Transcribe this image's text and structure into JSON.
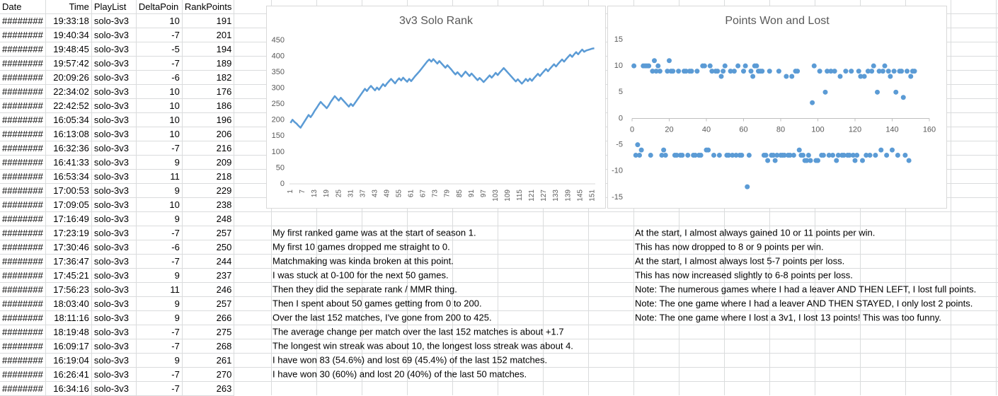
{
  "table": {
    "header": [
      "Date",
      "Time",
      "PlayList",
      "DeltaPoin",
      "RankPoints"
    ],
    "rows": [
      [
        "########",
        "19:33:18",
        "solo-3v3",
        10,
        191
      ],
      [
        "########",
        "19:40:34",
        "solo-3v3",
        -7,
        201
      ],
      [
        "########",
        "19:48:45",
        "solo-3v3",
        -5,
        194
      ],
      [
        "########",
        "19:57:42",
        "solo-3v3",
        -7,
        189
      ],
      [
        "########",
        "20:09:26",
        "solo-3v3",
        -6,
        182
      ],
      [
        "########",
        "22:34:02",
        "solo-3v3",
        10,
        176
      ],
      [
        "########",
        "22:42:52",
        "solo-3v3",
        10,
        186
      ],
      [
        "########",
        "16:05:34",
        "solo-3v3",
        10,
        196
      ],
      [
        "########",
        "16:13:08",
        "solo-3v3",
        10,
        206
      ],
      [
        "########",
        "16:32:36",
        "solo-3v3",
        -7,
        216
      ],
      [
        "########",
        "16:41:33",
        "solo-3v3",
        9,
        209
      ],
      [
        "########",
        "16:53:34",
        "solo-3v3",
        11,
        218
      ],
      [
        "########",
        "17:00:53",
        "solo-3v3",
        9,
        229
      ],
      [
        "########",
        "17:09:05",
        "solo-3v3",
        10,
        238
      ],
      [
        "########",
        "17:16:49",
        "solo-3v3",
        9,
        248
      ],
      [
        "########",
        "17:23:19",
        "solo-3v3",
        -7,
        257
      ],
      [
        "########",
        "17:30:46",
        "solo-3v3",
        -6,
        250
      ],
      [
        "########",
        "17:36:47",
        "solo-3v3",
        -7,
        244
      ],
      [
        "########",
        "17:45:21",
        "solo-3v3",
        9,
        237
      ],
      [
        "########",
        "17:56:23",
        "solo-3v3",
        11,
        246
      ],
      [
        "########",
        "18:03:40",
        "solo-3v3",
        9,
        257
      ],
      [
        "########",
        "18:11:16",
        "solo-3v3",
        9,
        266
      ],
      [
        "########",
        "18:19:48",
        "solo-3v3",
        -7,
        275
      ],
      [
        "########",
        "16:09:17",
        "solo-3v3",
        -7,
        268
      ],
      [
        "########",
        "16:19:04",
        "solo-3v3",
        9,
        261
      ],
      [
        "########",
        "16:26:41",
        "solo-3v3",
        -7,
        270
      ],
      [
        "########",
        "16:34:16",
        "solo-3v3",
        -7,
        263
      ]
    ]
  },
  "notes": {
    "left": [
      "My first ranked game was at the start of season 1.",
      "My first 10 games dropped me straight to 0.",
      "Matchmaking was kinda broken at this point.",
      "I was stuck at 0-100 for the next 50 games.",
      "Then they did the separate rank / MMR thing.",
      "Then I spent about 50 games getting from 0 to 200.",
      "Over the last 152 matches, I've gone from 200 to 425.",
      "The average change per match over the last 152 matches is about +1.7",
      "The longest win streak was about 10, the longest loss streak was about 4.",
      "I have won 83 (54.6%) and lost 69 (45.4%) of the last 152 matches.",
      "I have won 30 (60%) and lost 20 (40%) of the last 50 matches."
    ],
    "right": [
      "At the start, I almost always gained 10 or 11 points per win.",
      "This has now dropped to 8 or 9 points per win.",
      "At the start, I almost always lost 5-7 points per loss.",
      "This has now increased slightly to 6-8 points per loss.",
      "Note: The numerous games where I had a leaver AND THEN LEFT, I lost full points.",
      "Note: The one game where I had a leaver AND THEN STAYED, I only lost 2 points.",
      "Note: The one game where I lost a 3v1, I lost 13 points! This was too funny."
    ]
  },
  "chart_data": [
    {
      "type": "line",
      "title": "3v3 Solo Rank",
      "color": "#5b9bd5",
      "grid": false,
      "categories": [
        1,
        null,
        null,
        null,
        null,
        null,
        7,
        null,
        null,
        null,
        null,
        null,
        13,
        null,
        null,
        null,
        null,
        null,
        19,
        null,
        null,
        null,
        null,
        null,
        25,
        null,
        null,
        null,
        null,
        null,
        31,
        null,
        null,
        null,
        null,
        null,
        37,
        null,
        null,
        null,
        null,
        null,
        43,
        null,
        null,
        null,
        null,
        null,
        49,
        null,
        null,
        null,
        null,
        null,
        55,
        null,
        null,
        null,
        null,
        null,
        61,
        null,
        null,
        null,
        null,
        null,
        67,
        null,
        null,
        null,
        null,
        null,
        73,
        null,
        null,
        null,
        null,
        null,
        79,
        null,
        null,
        null,
        null,
        null,
        85,
        null,
        null,
        null,
        null,
        null,
        91,
        null,
        null,
        null,
        null,
        null,
        97,
        null,
        null,
        null,
        null,
        null,
        103,
        null,
        null,
        null,
        null,
        null,
        109,
        null,
        null,
        null,
        null,
        null,
        115,
        null,
        null,
        null,
        null,
        null,
        121,
        null,
        null,
        null,
        null,
        null,
        127,
        null,
        null,
        null,
        null,
        null,
        133,
        null,
        null,
        null,
        null,
        null,
        139,
        null,
        null,
        null,
        null,
        null,
        145,
        null,
        null,
        null,
        null,
        null,
        151,
        null
      ],
      "values": [
        191,
        201,
        194,
        189,
        182,
        176,
        186,
        196,
        206,
        216,
        209,
        218,
        229,
        238,
        248,
        257,
        250,
        244,
        237,
        246,
        257,
        266,
        275,
        268,
        261,
        270,
        263,
        256,
        249,
        242,
        251,
        244,
        253,
        262,
        271,
        280,
        289,
        298,
        291,
        300,
        307,
        300,
        293,
        302,
        295,
        304,
        313,
        306,
        315,
        322,
        329,
        322,
        315,
        324,
        331,
        324,
        333,
        326,
        320,
        329,
        322,
        330,
        338,
        345,
        352,
        360,
        368,
        376,
        384,
        390,
        383,
        391,
        384,
        377,
        385,
        378,
        371,
        364,
        372,
        365,
        358,
        350,
        343,
        350,
        343,
        336,
        344,
        352,
        345,
        338,
        346,
        339,
        332,
        325,
        332,
        326,
        319,
        326,
        333,
        340,
        333,
        340,
        348,
        341,
        349,
        356,
        363,
        356,
        349,
        342,
        335,
        328,
        321,
        328,
        321,
        314,
        321,
        329,
        322,
        330,
        323,
        331,
        338,
        345,
        338,
        346,
        353,
        360,
        353,
        361,
        368,
        375,
        368,
        376,
        383,
        390,
        383,
        391,
        398,
        405,
        398,
        406,
        413,
        406,
        414,
        421,
        414,
        418,
        420,
        422,
        424,
        425
      ],
      "ylim": [
        0,
        450
      ],
      "yticks": [
        0,
        50,
        100,
        150,
        200,
        250,
        300,
        350,
        400,
        450
      ]
    },
    {
      "type": "scatter",
      "title": "Points Won and Lost",
      "color": "#5b9bd5",
      "grid": false,
      "x": [
        1,
        2,
        3,
        4,
        5,
        6,
        7,
        8,
        9,
        10,
        11,
        12,
        13,
        14,
        15,
        16,
        17,
        18,
        19,
        20,
        21,
        22,
        23,
        24,
        25,
        26,
        27,
        28,
        29,
        30,
        31,
        32,
        33,
        34,
        35,
        36,
        37,
        38,
        39,
        40,
        41,
        42,
        43,
        44,
        45,
        46,
        47,
        48,
        49,
        50,
        51,
        52,
        53,
        54,
        55,
        56,
        57,
        58,
        59,
        60,
        61,
        62,
        63,
        64,
        65,
        66,
        67,
        68,
        69,
        70,
        71,
        72,
        73,
        74,
        75,
        76,
        77,
        78,
        79,
        80,
        81,
        82,
        83,
        84,
        85,
        86,
        87,
        88,
        89,
        90,
        91,
        92,
        93,
        94,
        95,
        96,
        97,
        98,
        99,
        100,
        101,
        102,
        103,
        104,
        105,
        106,
        107,
        108,
        109,
        110,
        111,
        112,
        113,
        114,
        115,
        116,
        117,
        118,
        119,
        120,
        121,
        122,
        123,
        124,
        125,
        126,
        127,
        128,
        129,
        130,
        131,
        132,
        133,
        134,
        135,
        136,
        137,
        138,
        139,
        140,
        141,
        142,
        143,
        144,
        145,
        146,
        147,
        148,
        149,
        150,
        151,
        152
      ],
      "values": [
        10,
        -7,
        -5,
        -7,
        -6,
        10,
        10,
        10,
        10,
        -7,
        9,
        11,
        9,
        10,
        9,
        -7,
        -6,
        -7,
        9,
        11,
        9,
        9,
        -7,
        -7,
        9,
        -7,
        -7,
        9,
        9,
        -7,
        9,
        9,
        -7,
        -7,
        9,
        -7,
        -7,
        10,
        10,
        -6,
        -6,
        10,
        9,
        -7,
        9,
        9,
        -7,
        8,
        9,
        10,
        -7,
        -7,
        9,
        -7,
        9,
        -7,
        10,
        -7,
        -7,
        9,
        10,
        -13,
        -7,
        9,
        8,
        10,
        10,
        9,
        9,
        9,
        -7,
        -7,
        -8,
        9,
        -7,
        -7,
        -8,
        -7,
        9,
        -7,
        -7,
        -7,
        8,
        -7,
        -7,
        8,
        -7,
        9,
        9,
        -6,
        -7,
        -7,
        -8,
        -8,
        -7,
        -8,
        3,
        10,
        -8,
        -8,
        9,
        -7,
        -7,
        5,
        9,
        -7,
        9,
        -7,
        9,
        -8,
        -7,
        8,
        -7,
        -7,
        9,
        -7,
        -7,
        9,
        -7,
        -8,
        -7,
        9,
        8,
        -8,
        8,
        -7,
        9,
        -7,
        9,
        10,
        -7,
        5,
        9,
        -6,
        9,
        10,
        -7,
        9,
        8,
        -6,
        9,
        5,
        -7,
        9,
        9,
        4,
        -7,
        9,
        -8,
        8,
        9,
        9
      ],
      "xlim": [
        0,
        160
      ],
      "xticks": [
        0,
        20,
        40,
        60,
        80,
        100,
        120,
        140,
        160
      ],
      "ylim": [
        -15,
        15
      ],
      "yticks": [
        -15,
        -10,
        -5,
        0,
        5,
        10,
        15
      ]
    }
  ]
}
